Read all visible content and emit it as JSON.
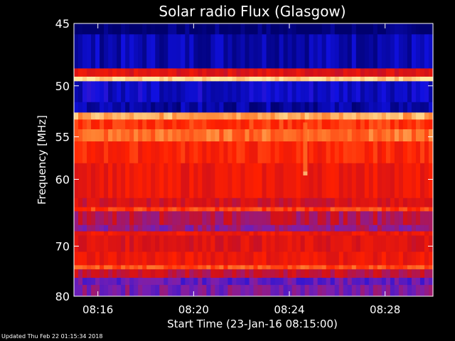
{
  "chart_data": {
    "type": "heatmap",
    "title": "Solar radio Flux (Glasgow)",
    "xlabel": "Start Time (23-Jan-16 08:15:00)",
    "ylabel": "Frequency [MHz]",
    "x_range_minutes": [
      "08:15:00",
      "08:30:00"
    ],
    "xlim": [
      "08:15:00",
      "08:30:00"
    ],
    "ylim": [
      45,
      80
    ],
    "x_ticks": [
      "08:16",
      "08:20",
      "08:24",
      "08:28"
    ],
    "y_ticks": [
      45,
      50,
      55,
      60,
      70,
      80
    ],
    "colormap": [
      "#00006e",
      "#1010e0",
      "#7a1fb0",
      "#d0101a",
      "#ff2000",
      "#ff8030",
      "#ffe8a0"
    ],
    "frequency_bands": [
      {
        "from": 45.0,
        "to": 45.8,
        "level": 0.0
      },
      {
        "from": 45.8,
        "to": 48.5,
        "level": 0.1
      },
      {
        "from": 48.5,
        "to": 49.2,
        "level": 0.55
      },
      {
        "from": 49.2,
        "to": 49.6,
        "level": 0.98
      },
      {
        "from": 49.6,
        "to": 51.5,
        "level": 0.14
      },
      {
        "from": 51.5,
        "to": 52.5,
        "level": 0.08
      },
      {
        "from": 52.5,
        "to": 53.2,
        "level": 0.9
      },
      {
        "from": 53.2,
        "to": 54.2,
        "level": 0.7
      },
      {
        "from": 54.2,
        "to": 55.5,
        "level": 0.8
      },
      {
        "from": 55.5,
        "to": 58.0,
        "level": 0.66
      },
      {
        "from": 58.0,
        "to": 62.5,
        "level": 0.6
      },
      {
        "from": 62.5,
        "to": 63.8,
        "level": 0.52
      },
      {
        "from": 63.8,
        "to": 64.4,
        "level": 0.72
      },
      {
        "from": 64.4,
        "to": 66.5,
        "level": 0.45
      },
      {
        "from": 66.5,
        "to": 67.5,
        "level": 0.38
      },
      {
        "from": 67.5,
        "to": 68.2,
        "level": 0.6
      },
      {
        "from": 68.2,
        "to": 71.0,
        "level": 0.55
      },
      {
        "from": 71.0,
        "to": 73.5,
        "level": 0.6
      },
      {
        "from": 73.5,
        "to": 74.3,
        "level": 0.75
      },
      {
        "from": 74.3,
        "to": 76.0,
        "level": 0.48
      },
      {
        "from": 76.0,
        "to": 77.5,
        "level": 0.3
      },
      {
        "from": 77.5,
        "to": 80.0,
        "level": 0.34
      }
    ],
    "bursts": [
      {
        "time": "08:24:40",
        "freq_from": 53.5,
        "freq_to": 59.0,
        "level": 0.8
      },
      {
        "time": "08:24:40",
        "freq_from": 59.0,
        "freq_to": 59.5,
        "level": 0.95
      }
    ]
  },
  "footer": {
    "updated": "Updated Thu Feb 22 01:15:34 2018"
  }
}
